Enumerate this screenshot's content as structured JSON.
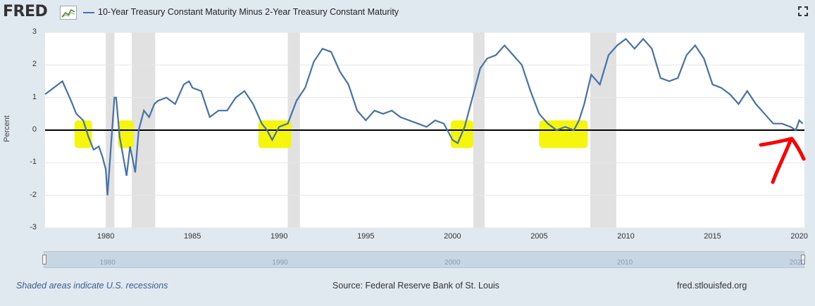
{
  "header": {
    "logo": "FRED",
    "logo_icon": "chart-line-icon",
    "fullscreen_icon": "fullscreen-icon"
  },
  "chart_data": {
    "type": "line",
    "title": "10-Year Treasury Constant Maturity Minus 2-Year Treasury Constant Maturity",
    "ylabel": "Percent",
    "xlabel": "",
    "ylim": [
      -3,
      3
    ],
    "xlim": [
      1976.5,
      2020.3
    ],
    "y_ticks": [
      "3",
      "2",
      "1",
      "0",
      "-1",
      "-2",
      "-3"
    ],
    "x_ticks": [
      "1980",
      "1985",
      "1990",
      "1995",
      "2000",
      "2005",
      "2010",
      "2015",
      "2020"
    ],
    "grid": true,
    "series_color": "#4572a7",
    "recessions": [
      [
        1980.0,
        1980.5
      ],
      [
        1981.5,
        1982.85
      ],
      [
        1990.5,
        1991.2
      ],
      [
        2001.2,
        2001.85
      ],
      [
        2007.95,
        2009.45
      ]
    ],
    "highlights": [
      [
        1978.2,
        1979.2
      ],
      [
        1980.7,
        1981.6
      ],
      [
        1988.8,
        1990.7
      ],
      [
        1999.9,
        2001.2
      ],
      [
        2005.0,
        2007.8
      ]
    ],
    "zero_line": 0,
    "series": [
      {
        "name": "10-Year Treasury Constant Maturity Minus 2-Year Treasury Constant Maturity",
        "x": [
          1976.5,
          1977,
          1977.5,
          1978,
          1978.3,
          1978.7,
          1979,
          1979.3,
          1979.6,
          1979.8,
          1980,
          1980.1,
          1980.3,
          1980.5,
          1980.6,
          1980.8,
          1981,
          1981.2,
          1981.4,
          1981.7,
          1981.9,
          1982.2,
          1982.5,
          1982.8,
          1983,
          1983.5,
          1984,
          1984.5,
          1984.8,
          1985,
          1985.5,
          1986,
          1986.5,
          1987,
          1987.5,
          1988,
          1988.5,
          1989,
          1989.3,
          1989.6,
          1990,
          1990.5,
          1991,
          1991.5,
          1992,
          1992.5,
          1993,
          1993.5,
          1994,
          1994.5,
          1995,
          1995.5,
          1996,
          1996.5,
          1997,
          1997.5,
          1998,
          1998.5,
          1999,
          1999.5,
          2000,
          2000.3,
          2000.7,
          2001,
          2001.3,
          2001.6,
          2002,
          2002.5,
          2003,
          2003.5,
          2004,
          2004.5,
          2005,
          2005.5,
          2006,
          2006.5,
          2007,
          2007.3,
          2007.6,
          2008,
          2008.5,
          2009,
          2009.5,
          2010,
          2010.5,
          2011,
          2011.5,
          2012,
          2012.5,
          2013,
          2013.5,
          2014,
          2014.5,
          2015,
          2015.5,
          2016,
          2016.5,
          2017,
          2017.5,
          2018,
          2018.5,
          2019,
          2019.5,
          2019.8,
          2020,
          2020.2
        ],
        "values": [
          1.1,
          1.3,
          1.5,
          0.9,
          0.5,
          0.3,
          -0.2,
          -0.6,
          -0.5,
          -0.8,
          -1.2,
          -2.0,
          -0.5,
          1.0,
          1.0,
          -0.2,
          -0.8,
          -1.4,
          -0.5,
          -1.3,
          0.0,
          0.6,
          0.4,
          0.8,
          0.9,
          1.0,
          0.8,
          1.4,
          1.5,
          1.3,
          1.2,
          0.4,
          0.6,
          0.6,
          1.0,
          1.2,
          0.8,
          0.2,
          0.0,
          -0.3,
          0.1,
          0.2,
          0.9,
          1.3,
          2.1,
          2.5,
          2.4,
          1.8,
          1.4,
          0.6,
          0.3,
          0.6,
          0.5,
          0.6,
          0.4,
          0.3,
          0.2,
          0.1,
          0.3,
          0.2,
          -0.3,
          -0.4,
          0.1,
          0.7,
          1.3,
          1.9,
          2.2,
          2.3,
          2.6,
          2.3,
          2.0,
          1.2,
          0.5,
          0.2,
          0.0,
          0.1,
          0.0,
          0.3,
          0.8,
          1.7,
          1.4,
          2.3,
          2.6,
          2.8,
          2.5,
          2.8,
          2.5,
          1.6,
          1.5,
          1.6,
          2.3,
          2.6,
          2.2,
          1.4,
          1.3,
          1.1,
          0.8,
          1.2,
          0.8,
          0.5,
          0.2,
          0.2,
          0.1,
          0.0,
          0.3,
          0.2
        ]
      }
    ]
  },
  "navigator": {
    "labels": [
      "1980",
      "1990",
      "2000",
      "2010",
      "2020"
    ]
  },
  "footer": {
    "note": "Shaded areas indicate U.S. recessions",
    "source": "Source: Federal Reserve Bank of St. Louis",
    "site": "fred.stlouisfed.org"
  }
}
